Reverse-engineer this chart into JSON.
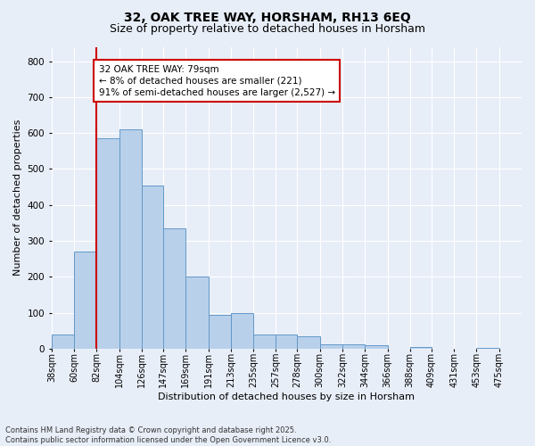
{
  "title1": "32, OAK TREE WAY, HORSHAM, RH13 6EQ",
  "title2": "Size of property relative to detached houses in Horsham",
  "xlabel": "Distribution of detached houses by size in Horsham",
  "ylabel": "Number of detached properties",
  "footnote1": "Contains HM Land Registry data © Crown copyright and database right 2025.",
  "footnote2": "Contains public sector information licensed under the Open Government Licence v3.0.",
  "annotation_line1": "32 OAK TREE WAY: 79sqm",
  "annotation_line2": "← 8% of detached houses are smaller (221)",
  "annotation_line3": "91% of semi-detached houses are larger (2,527) →",
  "bar_color": "#b8d0ea",
  "bar_edge_color": "#6399c8",
  "vline_color": "#cc0000",
  "vline_x_bin": 1,
  "categories": [
    "38sqm",
    "60sqm",
    "82sqm",
    "104sqm",
    "126sqm",
    "147sqm",
    "169sqm",
    "191sqm",
    "213sqm",
    "235sqm",
    "257sqm",
    "278sqm",
    "300sqm",
    "322sqm",
    "344sqm",
    "366sqm",
    "388sqm",
    "409sqm",
    "431sqm",
    "453sqm",
    "475sqm"
  ],
  "bin_edges": [
    38,
    60,
    82,
    104,
    126,
    147,
    169,
    191,
    213,
    235,
    257,
    278,
    300,
    322,
    344,
    366,
    388,
    409,
    431,
    453,
    475,
    497
  ],
  "values": [
    38,
    270,
    585,
    610,
    455,
    335,
    200,
    93,
    100,
    38,
    38,
    33,
    12,
    13,
    10,
    0,
    5,
    0,
    0,
    2,
    0
  ],
  "ylim": [
    0,
    840
  ],
  "yticks": [
    0,
    100,
    200,
    300,
    400,
    500,
    600,
    700,
    800
  ],
  "background_color": "#e8eef8",
  "grid_color": "#ffffff",
  "title_fontsize": 10,
  "subtitle_fontsize": 9,
  "axis_fontsize": 8,
  "tick_fontsize": 7,
  "annot_fontsize": 7.5
}
